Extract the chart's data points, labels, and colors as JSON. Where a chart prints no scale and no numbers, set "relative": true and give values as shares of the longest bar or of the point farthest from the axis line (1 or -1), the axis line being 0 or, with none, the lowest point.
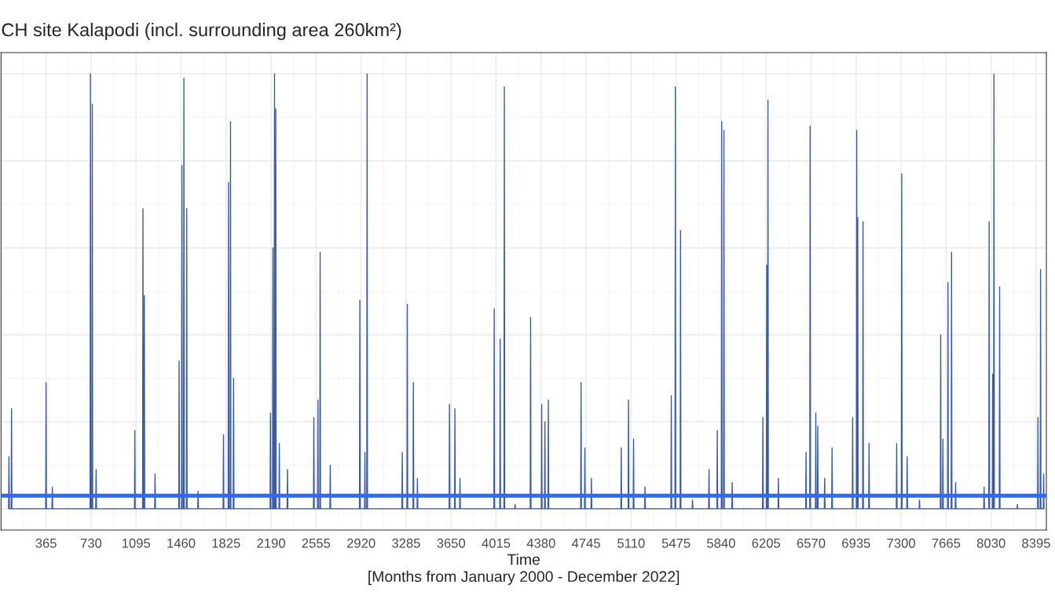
{
  "chart_data": {
    "type": "line",
    "title": "CH site Kalapodi (incl. surrounding area 260km²)",
    "xlabel": "Time\n[Months from January 2000 - December 2022]",
    "relative": true,
    "grid": true,
    "xlim": [
      0,
      8478
    ],
    "xticks": [
      365,
      730,
      1095,
      1460,
      1825,
      2190,
      2555,
      2920,
      3285,
      3650,
      4015,
      4380,
      4745,
      5110,
      5475,
      5840,
      6205,
      6570,
      6935,
      7300,
      7665,
      8030,
      8395
    ],
    "ref_lines": [
      {
        "axis": "y",
        "value": 0.03,
        "color": "#3366ff"
      }
    ],
    "series": [
      {
        "color": "#3b5ba5",
        "x": [
          61,
          64,
          67,
          82,
          85,
          88,
          362,
          365,
          368,
          413,
          416,
          419,
          722,
          725,
          728,
          737,
          740,
          743,
          768,
          771,
          774,
          1082,
          1085,
          1088,
          1148,
          1151,
          1154,
          1159,
          1162,
          1165,
          1246,
          1249,
          1252,
          1441,
          1444,
          1447,
          1464,
          1467,
          1470,
          1480,
          1483,
          1486,
          1503,
          1506,
          1509,
          1595,
          1598,
          1601,
          1801,
          1804,
          1807,
          1842,
          1845,
          1848,
          1858,
          1861,
          1864,
          1883,
          1886,
          1889,
          2182,
          2185,
          2188,
          2202,
          2205,
          2208,
          2215,
          2218,
          2221,
          2225,
          2228,
          2231,
          2254,
          2257,
          2260,
          2320,
          2323,
          2326,
          2534,
          2537,
          2540,
          2567,
          2570,
          2573,
          2585,
          2588,
          2591,
          2667,
          2670,
          2673,
          2907,
          2910,
          2913,
          2948,
          2951,
          2954,
          2966,
          2969,
          2972,
          3251,
          3254,
          3257,
          3292,
          3295,
          3298,
          3341,
          3344,
          3347,
          3374,
          3377,
          3380,
          3634,
          3637,
          3640,
          3678,
          3681,
          3684,
          3719,
          3722,
          3725,
          3997,
          4000,
          4003,
          4045,
          4048,
          4051,
          4079,
          4082,
          4085,
          4166,
          4169,
          4172,
          4292,
          4295,
          4298,
          4382,
          4385,
          4388,
          4408,
          4411,
          4414,
          4436,
          4439,
          4442,
          4701,
          4704,
          4707,
          4732,
          4735,
          4738,
          4785,
          4788,
          4791,
          5027,
          5030,
          5033,
          5086,
          5089,
          5092,
          5127,
          5130,
          5133,
          5220,
          5223,
          5226,
          5433,
          5436,
          5439,
          5466,
          5469,
          5472,
          5508,
          5511,
          5514,
          5605,
          5608,
          5611,
          5739,
          5742,
          5745,
          5806,
          5809,
          5812,
          5842,
          5845,
          5848,
          5860,
          5863,
          5866,
          5927,
          5930,
          5933,
          6176,
          6179,
          6182,
          6207,
          6210,
          6213,
          6217,
          6220,
          6223,
          6302,
          6305,
          6308,
          6526,
          6529,
          6532,
          6559,
          6562,
          6565,
          6605,
          6608,
          6611,
          6621,
          6624,
          6627,
          6677,
          6680,
          6683,
          6737,
          6740,
          6743,
          6904,
          6907,
          6910,
          6937,
          6940,
          6943,
          6945,
          6948,
          6951,
          6988,
          6991,
          6994,
          7037,
          7040,
          7043,
          7261,
          7264,
          7267,
          7302,
          7305,
          7308,
          7346,
          7349,
          7352,
          7446,
          7449,
          7452,
          7618,
          7621,
          7624,
          7636,
          7639,
          7642,
          7677,
          7680,
          7683,
          7706,
          7709,
          7712,
          7739,
          7742,
          7745,
          7970,
          7973,
          7976,
          8011,
          8014,
          8017,
          8040,
          8043,
          8046,
          8050,
          8053,
          8056,
          8096,
          8099,
          8102,
          8240,
          8243,
          8246,
          8407,
          8410,
          8413,
          8428,
          8431,
          8434,
          8453,
          8456,
          8459
        ],
        "values": [
          0,
          0.12,
          0,
          0,
          0.23,
          0,
          0,
          0.29,
          0,
          0,
          0.05,
          0,
          0,
          1.0,
          0,
          0,
          0.93,
          0,
          0,
          0.09,
          0,
          0,
          0.18,
          0,
          0,
          0.69,
          0,
          0,
          0.49,
          0,
          0,
          0.08,
          0,
          0,
          0.34,
          0,
          0,
          0.79,
          0,
          0,
          0.99,
          0,
          0,
          0.69,
          0,
          0,
          0.04,
          0,
          0,
          0.17,
          0,
          0,
          0.75,
          0,
          0,
          0.89,
          0,
          0,
          0.3,
          0,
          0,
          0.22,
          0,
          0,
          0.6,
          0,
          0,
          1.0,
          0,
          0,
          0.92,
          0,
          0,
          0.15,
          0,
          0,
          0.09,
          0,
          0,
          0.21,
          0,
          0,
          0.25,
          0,
          0,
          0.59,
          0,
          0,
          0.1,
          0,
          0,
          0.48,
          0,
          0,
          0.13,
          0,
          0,
          1.0,
          0,
          0,
          0.13,
          0,
          0,
          0.47,
          0,
          0,
          0.29,
          0,
          0,
          0.07,
          0,
          0,
          0.24,
          0,
          0,
          0.23,
          0,
          0,
          0.07,
          0,
          0,
          0.46,
          0,
          0,
          0.39,
          0,
          0,
          0.97,
          0,
          0,
          0.01,
          0,
          0,
          0.44,
          0,
          0,
          0.24,
          0,
          0,
          0.2,
          0,
          0,
          0.25,
          0,
          0,
          0.29,
          0,
          0,
          0.14,
          0,
          0,
          0.07,
          0,
          0,
          0.14,
          0,
          0,
          0.25,
          0,
          0,
          0.16,
          0,
          0,
          0.05,
          0,
          0,
          0.26,
          0,
          0,
          0.97,
          0,
          0,
          0.64,
          0,
          0,
          0.02,
          0,
          0,
          0.09,
          0,
          0,
          0.18,
          0,
          0,
          0.89,
          0,
          0,
          0.87,
          0,
          0,
          0.06,
          0,
          0,
          0.21,
          0,
          0,
          0.56,
          0,
          0,
          0.94,
          0,
          0,
          0.07,
          0,
          0,
          0.13,
          0,
          0,
          0.88,
          0,
          0,
          0.22,
          0,
          0,
          0.19,
          0,
          0,
          0.07,
          0,
          0,
          0.14,
          0,
          0,
          0.21,
          0,
          0,
          0.87,
          0,
          0,
          0.67,
          0,
          0,
          0.66,
          0,
          0,
          0.15,
          0,
          0,
          0.15,
          0,
          0,
          0.77,
          0,
          0,
          0.12,
          0,
          0,
          0.02,
          0,
          0,
          0.4,
          0,
          0,
          0.16,
          0,
          0,
          0.52,
          0,
          0,
          0.59,
          0,
          0,
          0.06,
          0,
          0,
          0.05,
          0,
          0,
          0.66,
          0,
          0,
          0.31,
          0,
          0,
          1.0,
          0,
          0,
          0.51,
          0,
          0,
          0.01,
          0,
          0,
          0.21,
          0,
          0,
          0.55,
          0,
          0,
          0.08,
          0
        ]
      }
    ]
  }
}
